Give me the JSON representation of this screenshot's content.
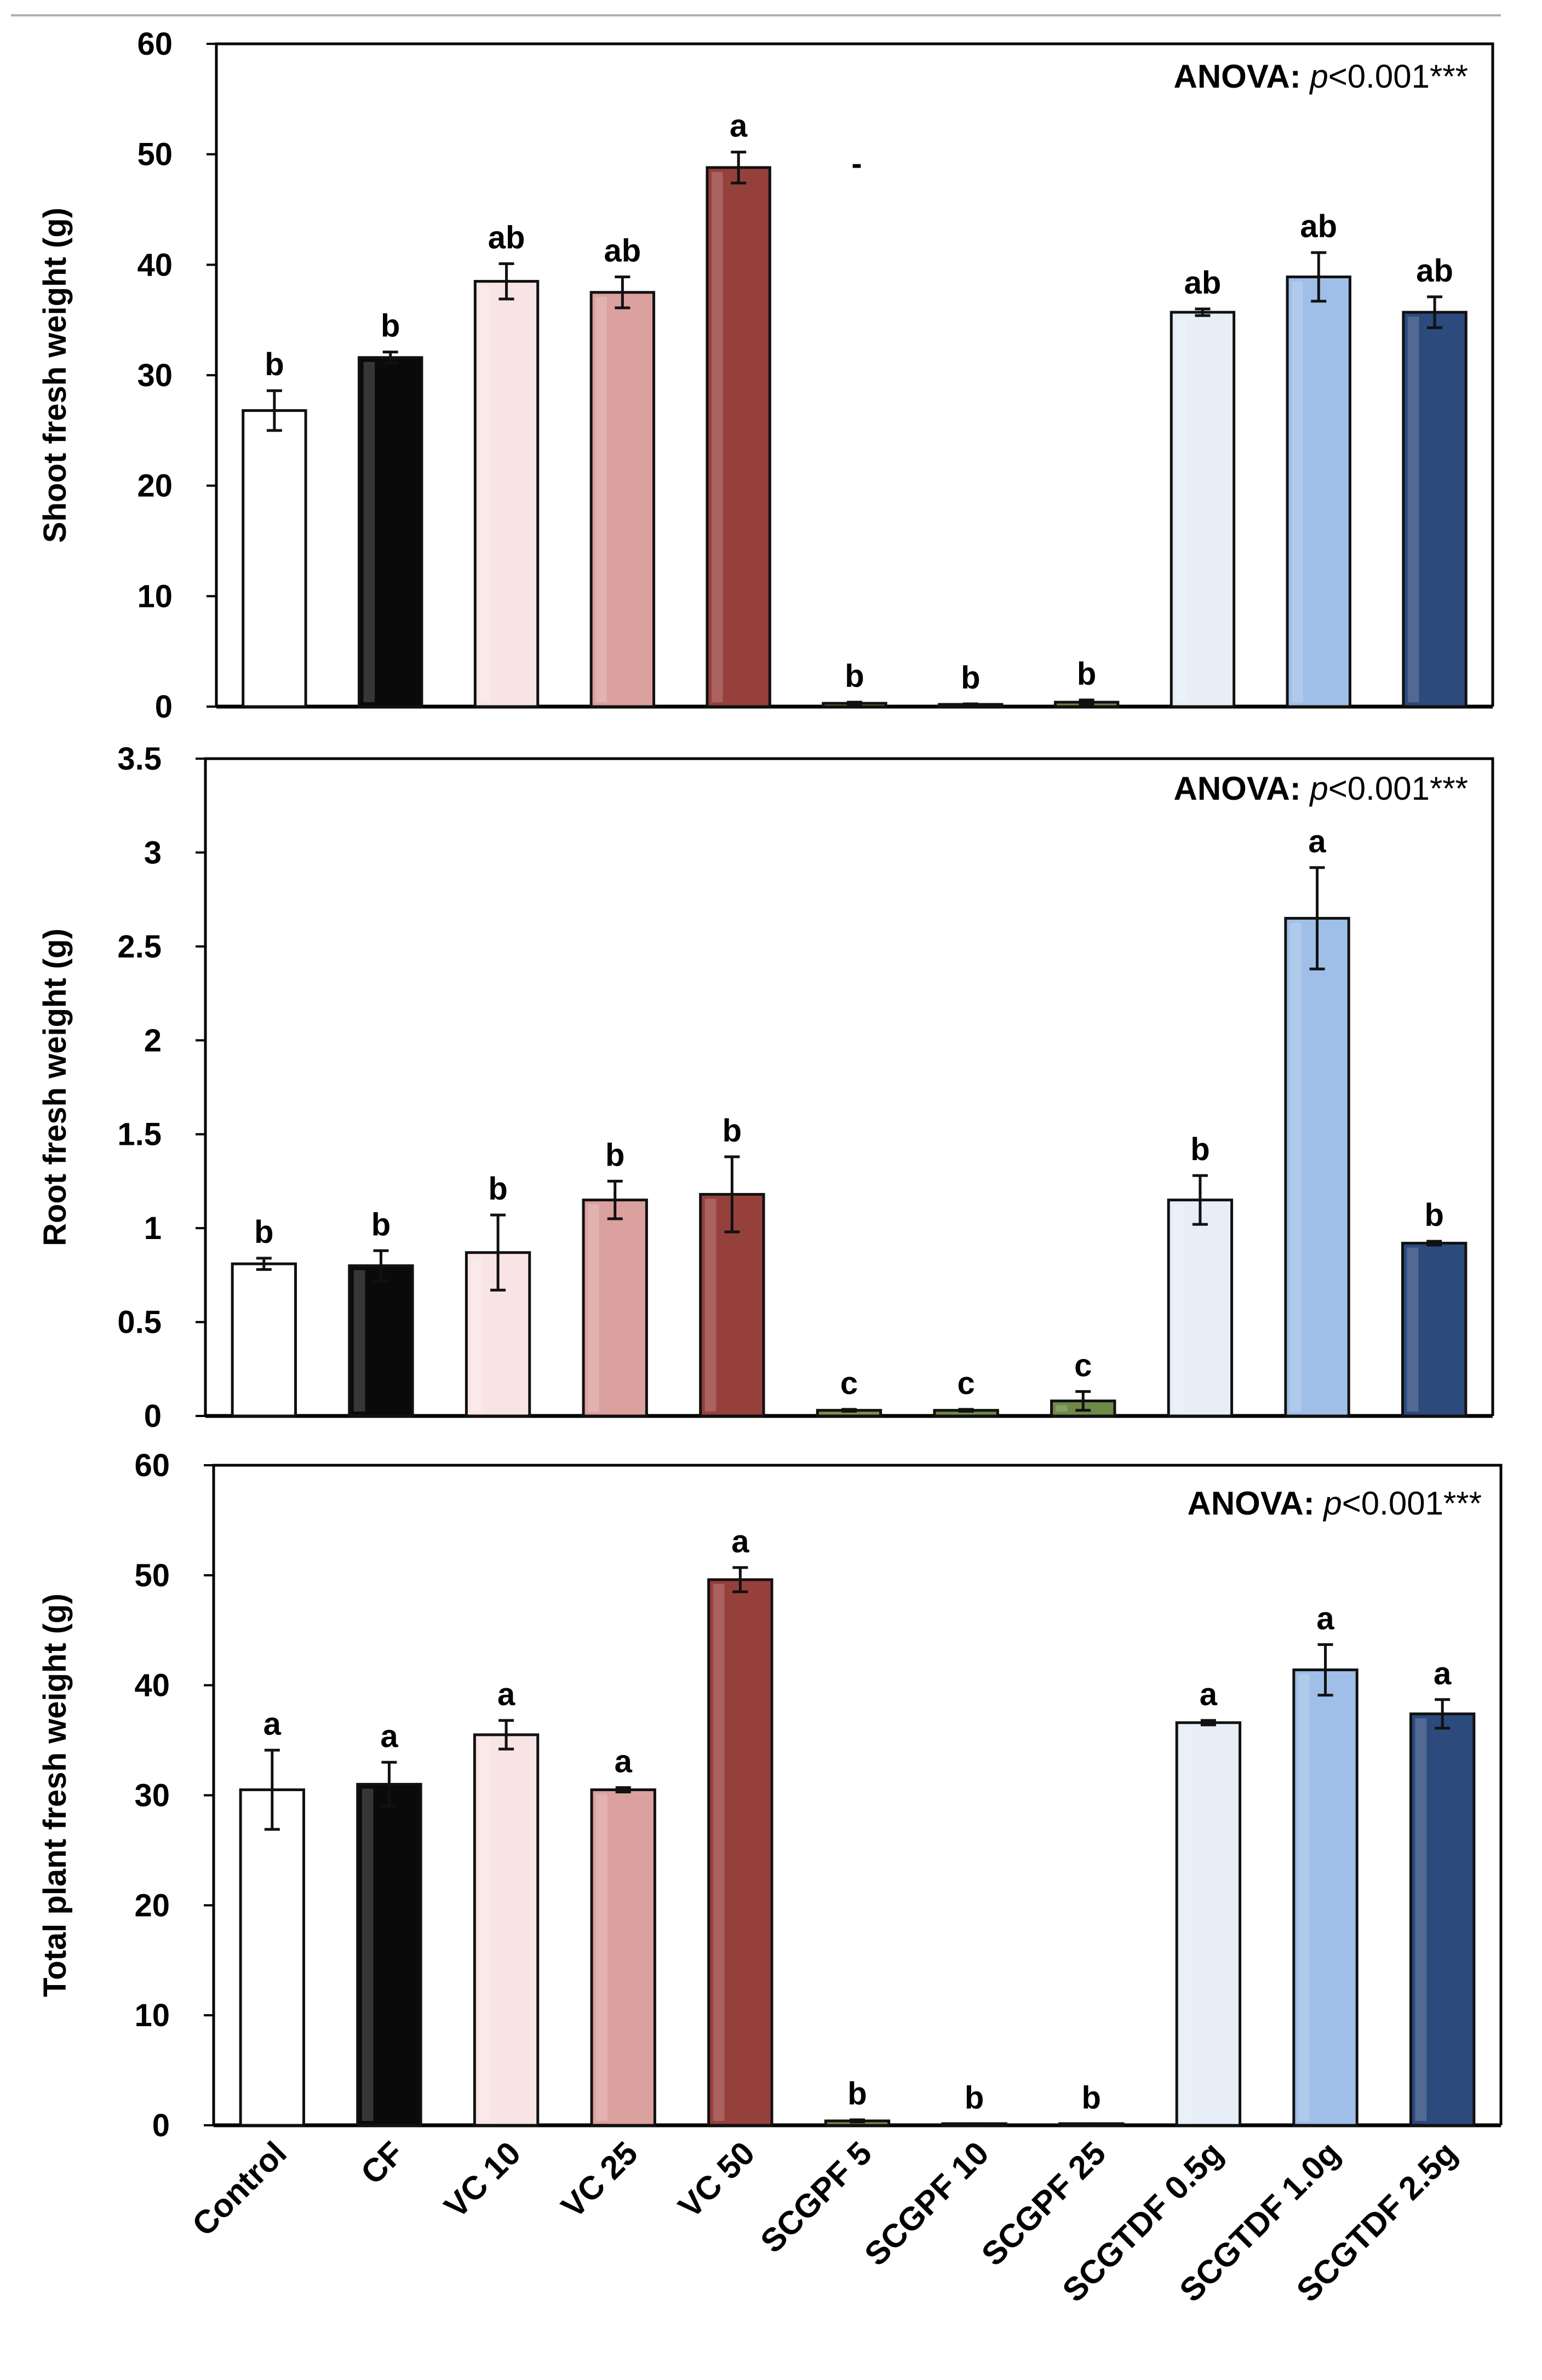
{
  "chart_data": [
    {
      "type": "bar",
      "ylabel": "Shoot fresh weight (g)",
      "ylim": [
        0,
        60
      ],
      "yticks": [
        "0",
        "10",
        "20",
        "30",
        "40",
        "50",
        "60"
      ],
      "annotation": {
        "prefix": "ANOVA: ",
        "p": "p",
        "rest": "<0.001***"
      },
      "values": [
        26.8,
        31.6,
        38.5,
        37.5,
        48.8,
        0.3,
        0.2,
        0.4,
        35.7,
        38.9,
        35.7
      ],
      "errors": [
        1.8,
        0.5,
        1.6,
        1.4,
        1.4,
        0.1,
        0.05,
        0.2,
        0.3,
        2.2,
        1.4
      ],
      "letters": [
        "b",
        "b",
        "ab",
        "ab",
        "a",
        "b",
        "b",
        "b",
        "ab",
        "ab",
        "ab"
      ]
    },
    {
      "type": "bar",
      "ylabel": "Root fresh weight (g)",
      "ylim": [
        0,
        3.5
      ],
      "yticks": [
        "0",
        "0.5",
        "1",
        "1.5",
        "2",
        "2.5",
        "3",
        "3.5"
      ],
      "annotation": {
        "prefix": "ANOVA: ",
        "p": "p",
        "rest": "<0.001***"
      },
      "values": [
        0.81,
        0.8,
        0.87,
        1.15,
        1.18,
        0.03,
        0.03,
        0.08,
        1.15,
        2.65,
        0.92
      ],
      "errors": [
        0.03,
        0.08,
        0.2,
        0.1,
        0.2,
        0.005,
        0.005,
        0.05,
        0.13,
        0.27,
        0.01
      ],
      "letters": [
        "b",
        "b",
        "b",
        "b",
        "b",
        "c",
        "c",
        "c",
        "b",
        "a",
        "b"
      ]
    },
    {
      "type": "bar",
      "ylabel": "Total plant fresh weight (g)",
      "ylim": [
        0,
        60
      ],
      "yticks": [
        "0",
        "10",
        "20",
        "30",
        "40",
        "50",
        "60"
      ],
      "annotation": {
        "prefix": "ANOVA: ",
        "p": "p",
        "rest": "<0.001***"
      },
      "values": [
        30.5,
        31.0,
        35.5,
        30.5,
        49.6,
        0.4,
        0.1,
        0.1,
        36.6,
        41.4,
        37.4
      ],
      "errors": [
        3.6,
        2.0,
        1.3,
        0.2,
        1.1,
        0.1,
        0.02,
        0.02,
        0.2,
        2.3,
        1.3
      ],
      "letters": [
        "a",
        "a",
        "a",
        "a",
        "a",
        "b",
        "b",
        "b",
        "a",
        "a",
        "a"
      ]
    }
  ],
  "categories": [
    "Control",
    "CF",
    "VC 10",
    "VC 25",
    "VC 50",
    "SCGPF 5",
    "SCGPF 10",
    "SCGPF 25",
    "SCGTDF 0.5g",
    "SCGTDF 1.0g",
    "SCGTDF 2.5g"
  ],
  "colors": [
    "#ffffff",
    "#0a0a0a",
    "#f8e4e4",
    "#dba19f",
    "#96403c",
    "#7f8f4c",
    "#6f8a48",
    "#6f8a48",
    "#e7eef8",
    "#9fbfe8",
    "#2c4a7c"
  ],
  "stray_mark": "-"
}
